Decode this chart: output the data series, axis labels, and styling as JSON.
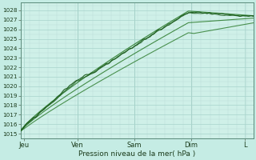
{
  "xlabel": "Pression niveau de la mer( hPa )",
  "bg_color": "#c5ece4",
  "plot_bg_color": "#cff0e8",
  "grid_major_color": "#a8d4cc",
  "grid_minor_color": "#b8dcd6",
  "ylim_low": 1014.5,
  "ylim_high": 1028.8,
  "xlim_low": 0,
  "xlim_high": 4.3,
  "yticks": [
    1015,
    1016,
    1017,
    1018,
    1019,
    1020,
    1021,
    1022,
    1023,
    1024,
    1025,
    1026,
    1027,
    1028
  ],
  "xtick_labels": [
    "Jeu",
    "Ven",
    "Sam",
    "Dim",
    "L"
  ],
  "xtick_positions": [
    0.05,
    1.05,
    2.1,
    3.15,
    4.15
  ],
  "dark_green": "#1a5c1a",
  "mid_green": "#2a7a2a",
  "seed": 12
}
